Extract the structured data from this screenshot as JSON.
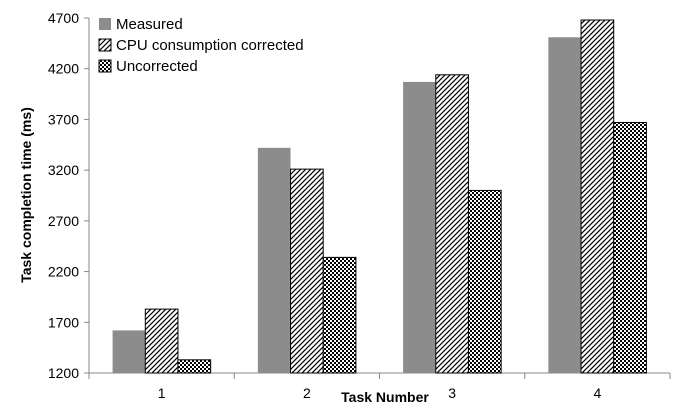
{
  "chart_data": {
    "type": "bar",
    "title": "",
    "xlabel": "Task Number",
    "ylabel": "Task completion time (ms)",
    "categories": [
      "1",
      "2",
      "3",
      "4"
    ],
    "ylim": [
      1200,
      4700
    ],
    "yticks": [
      "1200",
      "1700",
      "2200",
      "2700",
      "3200",
      "3700",
      "4200",
      "4700"
    ],
    "grid": false,
    "legend_position": "top-left",
    "series": [
      {
        "name": "Measured",
        "values": [
          1620,
          3420,
          4070,
          4510
        ],
        "fill": "solid",
        "color": "#8c8c8c"
      },
      {
        "name": "CPU consumption corrected",
        "values": [
          1830,
          3210,
          4140,
          4680
        ],
        "fill": "diagonal-hatch",
        "color": "#000000"
      },
      {
        "name": "Uncorrected",
        "values": [
          1330,
          2340,
          3000,
          3670
        ],
        "fill": "checkerboard",
        "color": "#000000"
      }
    ]
  }
}
